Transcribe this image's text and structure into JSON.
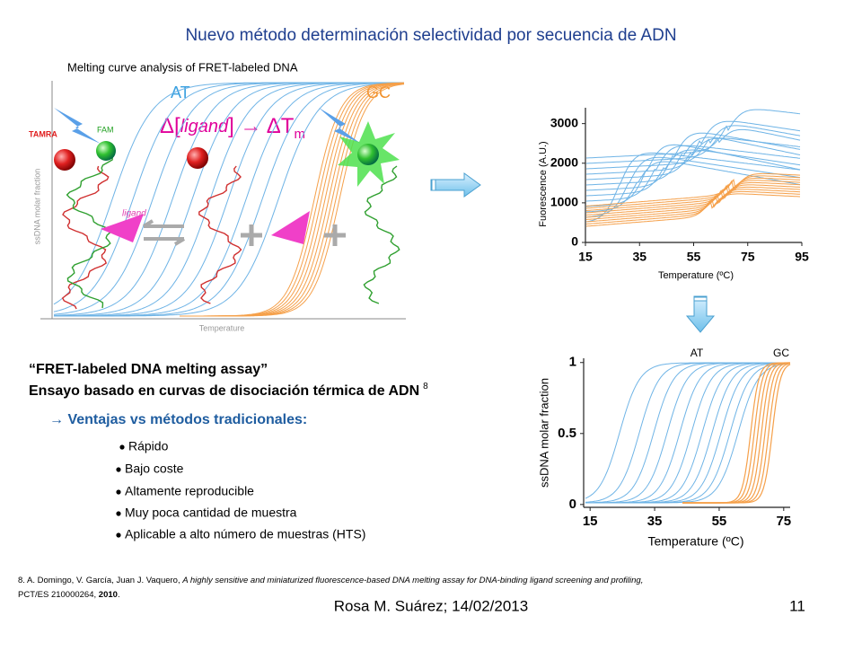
{
  "title": "Nuevo método determinación selectividad por secuencia de ADN",
  "figure_left": {
    "caption": "Melting curve analysis of FRET-labeled DNA",
    "at_label": "AT",
    "gc_label": "GC",
    "tamra_label": "TAMRA",
    "fam_label": "FAM",
    "ligand_label": "ligand",
    "y_axis_label": "ssDNA molar fraction",
    "x_axis_label": "Temperature",
    "equation": {
      "delta_open": "Δ[",
      "ligand": "ligand",
      "close_arrow": "]  →  ΔT",
      "subscript": "m"
    }
  },
  "chart_fluorescence": {
    "type": "line",
    "y_axis_label": "Fuorescence (A.U.)",
    "x_axis_label": "Temperature  (ºC)",
    "xlim": [
      15,
      95
    ],
    "ylim": [
      0,
      3400
    ],
    "xticks": [
      15,
      35,
      55,
      75,
      95
    ],
    "yticks": [
      0,
      1000,
      2000,
      3000
    ]
  },
  "chart_fraction": {
    "type": "line",
    "y_axis_label": "ssDNA molar fraction",
    "x_axis_label": "Temperature  (ºC)",
    "at_label": "AT",
    "gc_label": "GC",
    "xlim": [
      13,
      77
    ],
    "ylim": [
      -0.02,
      1.03
    ],
    "xticks": [
      15,
      35,
      55,
      75
    ],
    "yticks": [
      0,
      0.5,
      1
    ]
  },
  "body": {
    "heading1": "“FRET-labeled DNA melting assay”",
    "heading2": "Ensayo basado en curvas de disociación térmica de ADN",
    "heading2_ref": "8",
    "advantages_title": "→ Ventajas vs métodos tradicionales:",
    "bullets": [
      "Rápido",
      "Bajo coste",
      "Altamente reproducible",
      "Muy poca cantidad de muestra",
      "Aplicable a alto número de muestras (HTS)"
    ]
  },
  "reference": {
    "authors": "8. A. Domingo, V. García, Juan J. Vaquero, ",
    "article_title": "A highly sensitive and miniaturized fluorescence-based DNA melting assay for DNA-binding ligand screening and profiling,",
    "patent": "PCT/ES 210000264, ",
    "year": "2010",
    "end": "."
  },
  "footer": {
    "author_date": "Rosa M. Suárez; 14/02/2013",
    "page_number": "11"
  }
}
